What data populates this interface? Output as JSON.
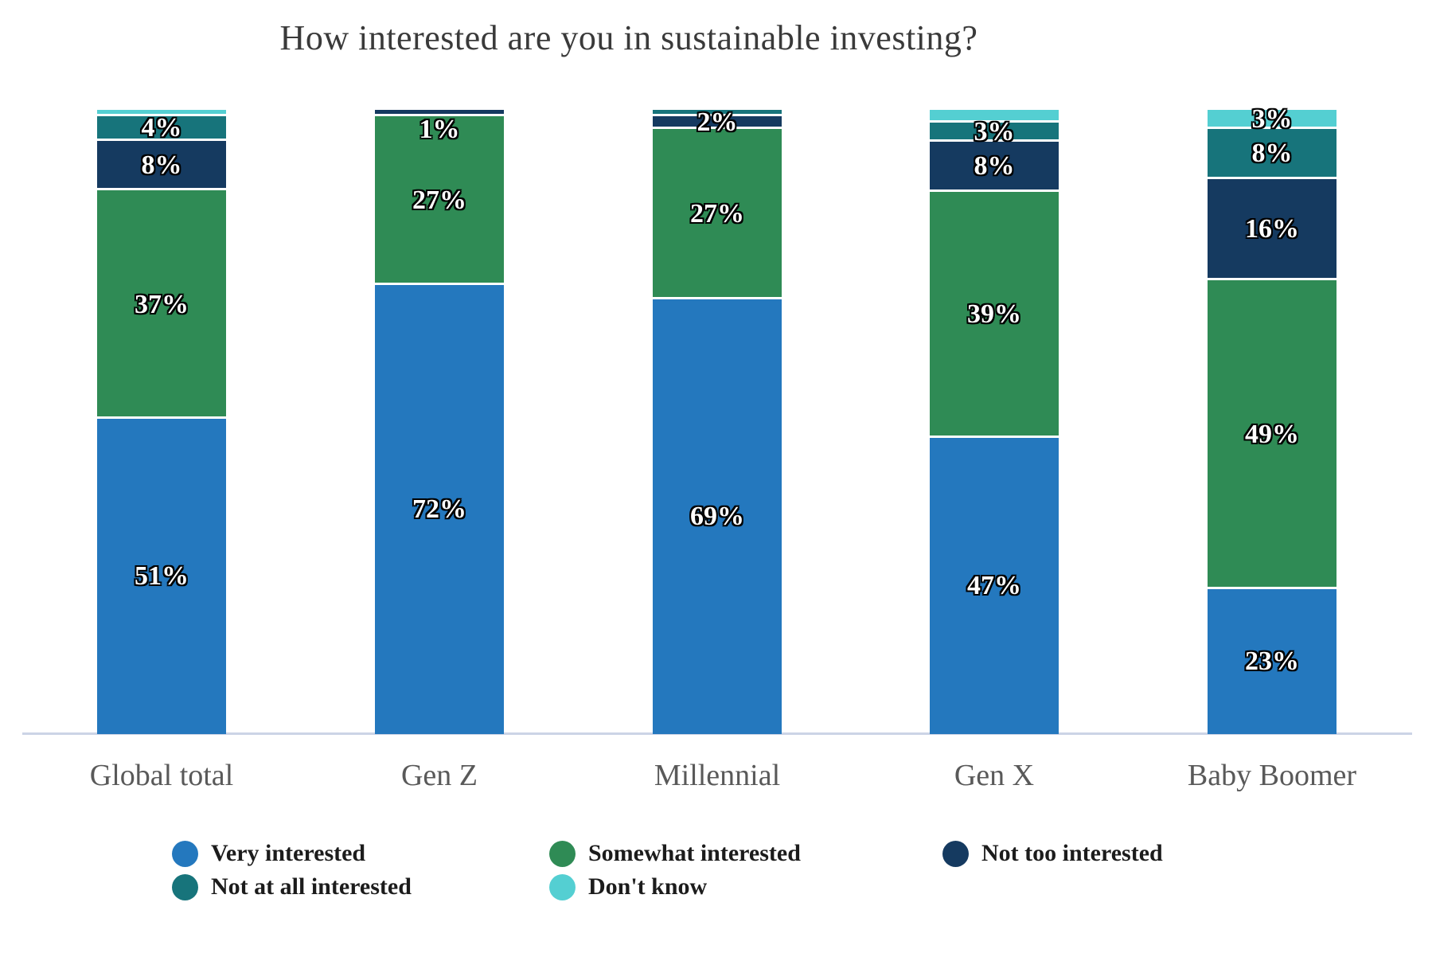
{
  "title": "How interested are you in sustainable investing?",
  "chart_data": {
    "type": "bar",
    "stacked": true,
    "orientation": "vertical",
    "unit": "%",
    "ylim": [
      0,
      100
    ],
    "grid": false,
    "legend_position": "bottom",
    "categories": [
      "Global total",
      "Gen Z",
      "Millennial",
      "Gen X",
      "Baby Boomer"
    ],
    "series": [
      {
        "name": "Very interested",
        "color": "#2478be",
        "values": [
          51,
          72,
          69,
          47,
          23
        ],
        "display_labels": [
          "51%",
          "72%",
          "69%",
          "47%",
          "23%"
        ]
      },
      {
        "name": "Somewhat interested",
        "color": "#2f8b55",
        "values": [
          37,
          27,
          27,
          39,
          49
        ],
        "display_labels": [
          "37%",
          "27%",
          "27%",
          "39%",
          "49%"
        ]
      },
      {
        "name": "Not too interested",
        "color": "#153a60",
        "values": [
          8,
          1,
          2,
          8,
          16
        ],
        "display_labels": [
          "8%",
          "1%",
          "2%",
          "8%",
          "16%"
        ]
      },
      {
        "name": "Not at all interested",
        "color": "#17747b",
        "values": [
          4,
          0,
          1,
          3,
          8
        ],
        "display_labels": [
          "4%",
          null,
          null,
          "3%",
          "8%"
        ]
      },
      {
        "name": "Don't know",
        "color": "#54cfd2",
        "values": [
          1,
          0,
          0,
          2,
          3
        ],
        "display_labels": [
          null,
          null,
          null,
          null,
          "3%"
        ]
      }
    ],
    "legend_rows": [
      [
        0,
        1,
        2
      ],
      [
        3,
        4
      ]
    ]
  },
  "colors": {
    "axis_line": "#ccd4e6",
    "title_text": "#3a3a3a",
    "category_label_text": "#595959",
    "legend_text": "#1c1c1c",
    "data_label_text": "#ffffff",
    "data_label_outline": "#000000"
  }
}
